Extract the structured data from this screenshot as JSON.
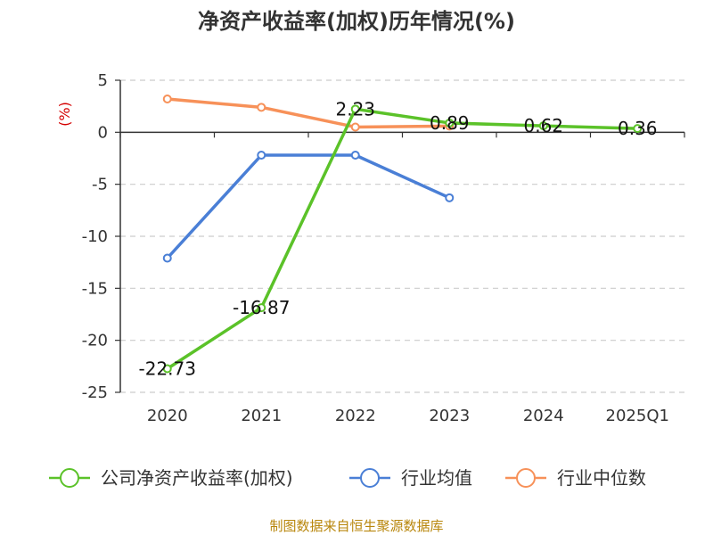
{
  "chart_data": {
    "type": "line",
    "title": "净资产收益率(加权)历年情况(%)",
    "ylabel": "(%)",
    "categories": [
      "2020",
      "2021",
      "2022",
      "2023",
      "2024",
      "2025Q1"
    ],
    "ylim": [
      -25,
      5
    ],
    "yticks": [
      5,
      0,
      -5,
      -10,
      -15,
      -20,
      -25
    ],
    "grid": true,
    "legend_position": "bottom",
    "series": [
      {
        "name": "公司净资产收益率(加权)",
        "color": "#5bc229",
        "values": [
          -22.73,
          -16.87,
          2.23,
          0.89,
          0.62,
          0.36
        ],
        "labels": [
          "-22.73",
          "-16.87",
          "2.23",
          "0.89",
          "0.62",
          "0.36"
        ]
      },
      {
        "name": "行业均值",
        "color": "#4a7fd6",
        "values": [
          -12.1,
          -2.2,
          -2.2,
          -6.3,
          null,
          null
        ]
      },
      {
        "name": "行业中位数",
        "color": "#f79159",
        "values": [
          3.2,
          2.4,
          0.5,
          0.6,
          null,
          null
        ]
      }
    ]
  },
  "source": "制图数据来自恒生聚源数据库"
}
